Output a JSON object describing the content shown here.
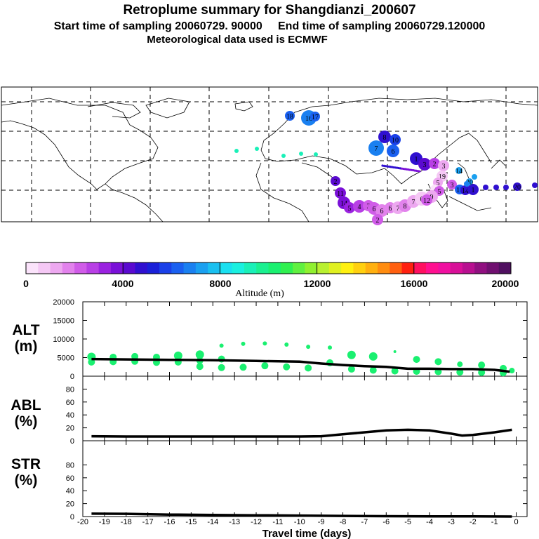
{
  "title": {
    "line1": "Retroplume summary for Shangdianzi_200607",
    "line2": "Start time of sampling 20060729. 90000     End time of sampling 20060729.120000",
    "line3": "Meteorological data used is ECMWF"
  },
  "colorbar": {
    "label": "Altitude (m)",
    "ticks": [
      "0",
      "4000",
      "8000",
      "12000",
      "16000",
      "20000"
    ],
    "colors": [
      "#fbe3fb",
      "#f5c8f5",
      "#eda8f0",
      "#e282ec",
      "#d05ce8",
      "#b83fe5",
      "#9a22e0",
      "#7a10d8",
      "#5a0ad0",
      "#3010d0",
      "#1a20d8",
      "#1a40e8",
      "#1a60f0",
      "#1a80f0",
      "#1aa0f0",
      "#1ac0f0",
      "#1ae0f0",
      "#1af0e0",
      "#1af0b8",
      "#1af090",
      "#1af070",
      "#30f050",
      "#60f040",
      "#90f030",
      "#b8f030",
      "#e0f020",
      "#fff010",
      "#ffd010",
      "#ffb010",
      "#ff8c10",
      "#ff6010",
      "#ff2010",
      "#ff1060",
      "#ff1090",
      "#f010a0",
      "#d81098",
      "#b81090",
      "#901080",
      "#701070",
      "#501060"
    ]
  },
  "panels": {
    "alt": {
      "label_line1": "ALT",
      "label_line2": "(m)"
    },
    "abl": {
      "label_line1": "ABL",
      "label_line2": "(%)"
    },
    "str": {
      "label_line1": "STR",
      "label_line2": "(%)"
    },
    "xlabel": "Travel time (days)"
  },
  "map_labels": [
    "18",
    "16",
    "17",
    "15",
    "13",
    "12",
    "10",
    "9",
    "8",
    "7",
    "6",
    "5",
    "4",
    "3",
    "2",
    "1",
    "11",
    "14",
    "19",
    "20"
  ],
  "chart_data": [
    {
      "type": "scatter",
      "title": "ALT (m)",
      "xlabel": "Travel time (days)",
      "ylabel": "ALT (m)",
      "xlim": [
        -20,
        0.5
      ],
      "ylim": [
        0,
        20000
      ],
      "x_ticks": [
        -20,
        -19,
        -18,
        -17,
        -16,
        -15,
        -14,
        -13,
        -12,
        -11,
        -10,
        -9,
        -8,
        -7,
        -6,
        -5,
        -4,
        -3,
        -2,
        -1,
        0
      ],
      "x_tick_labels": [
        "-20",
        "-19",
        "-18",
        "-17",
        "-16",
        "-15",
        "-14",
        "-13",
        "-12",
        "-11",
        "-10",
        "-9",
        "-8",
        "-7",
        "-6",
        "-5",
        "-4",
        "-3",
        "-2",
        "-1",
        "0"
      ],
      "y_ticks": [
        0,
        5000,
        10000,
        15000,
        20000
      ],
      "y_tick_labels": [
        "0",
        "5000",
        "10000",
        "15000",
        "20000"
      ],
      "series": [
        {
          "name": "mean altitude",
          "style": "line",
          "x": [
            -19.6,
            -18,
            -16,
            -14,
            -12,
            -10,
            -9,
            -8,
            -7,
            -6,
            -5,
            -4,
            -3,
            -2,
            -1,
            -0.3
          ],
          "y": [
            4600,
            4500,
            4400,
            4300,
            4100,
            3900,
            3400,
            3000,
            2700,
            2500,
            2000,
            2000,
            1900,
            1900,
            1700,
            1200
          ]
        },
        {
          "name": "cluster altitudes",
          "style": "points",
          "color": "#1af070",
          "x": [
            -19.6,
            -19.6,
            -18.6,
            -18.6,
            -17.6,
            -17.6,
            -16.6,
            -16.6,
            -15.6,
            -15.6,
            -14.6,
            -14.6,
            -14.6,
            -13.6,
            -13.6,
            -13.6,
            -12.6,
            -12.6,
            -11.6,
            -11.6,
            -10.6,
            -10.6,
            -9.6,
            -9.6,
            -8.6,
            -8.6,
            -7.6,
            -7.6,
            -6.6,
            -6.6,
            -5.6,
            -5.6,
            -4.6,
            -4.6,
            -3.6,
            -3.6,
            -2.6,
            -2.6,
            -1.6,
            -1.6,
            -0.6,
            -0.6,
            -0.2
          ],
          "y": [
            5200,
            3800,
            5100,
            3900,
            5300,
            4000,
            5100,
            3700,
            5500,
            3800,
            5800,
            4200,
            2600,
            8200,
            4600,
            2300,
            8700,
            2400,
            8800,
            2800,
            8500,
            2500,
            7900,
            2200,
            7700,
            3600,
            5700,
            1900,
            5300,
            1600,
            6600,
            1400,
            4500,
            1300,
            3900,
            1200,
            3200,
            1100,
            3000,
            1000,
            2100,
            900,
            1500
          ],
          "sizes": [
            6,
            5,
            5,
            5,
            5,
            5,
            5,
            5,
            6,
            5,
            6,
            5,
            5,
            3,
            5,
            5,
            3,
            5,
            3,
            5,
            3,
            5,
            3,
            5,
            3,
            5,
            6,
            5,
            6,
            5,
            2,
            5,
            5,
            5,
            5,
            5,
            4,
            5,
            5,
            5,
            5,
            5,
            4
          ]
        }
      ]
    },
    {
      "type": "line",
      "title": "ABL (%)",
      "xlabel": "Travel time (days)",
      "ylabel": "ABL (%)",
      "xlim": [
        -20,
        0.5
      ],
      "ylim": [
        0,
        100
      ],
      "y_ticks": [
        0,
        20,
        40,
        60,
        80
      ],
      "y_tick_labels": [
        "0",
        "20",
        "40",
        "60",
        "80"
      ],
      "series": [
        {
          "name": "ABL",
          "x": [
            -19.6,
            -18,
            -16,
            -14,
            -12,
            -10,
            -9,
            -8,
            -7,
            -6,
            -5,
            -4,
            -3,
            -2.5,
            -2,
            -1,
            -0.2
          ],
          "y": [
            7,
            6.5,
            6.5,
            6.5,
            6.5,
            6.5,
            7,
            10,
            13,
            16,
            17,
            16,
            11,
            8,
            9,
            13,
            17
          ]
        }
      ]
    },
    {
      "type": "line",
      "title": "STR (%)",
      "xlabel": "Travel time (days)",
      "ylabel": "STR (%)",
      "xlim": [
        -20,
        0.5
      ],
      "ylim": [
        0,
        100
      ],
      "y_ticks": [
        0,
        20,
        40,
        60,
        80
      ],
      "y_tick_labels": [
        "0",
        "20",
        "40",
        "60",
        "80"
      ],
      "series": [
        {
          "name": "STR",
          "x": [
            -19.6,
            -18,
            -16,
            -14,
            -12,
            -10,
            -8,
            -6,
            -4,
            -2,
            -0.2
          ],
          "y": [
            4.5,
            4.2,
            3,
            2.5,
            2,
            1.5,
            1,
            0.5,
            0.3,
            0.2,
            0
          ]
        }
      ]
    }
  ]
}
